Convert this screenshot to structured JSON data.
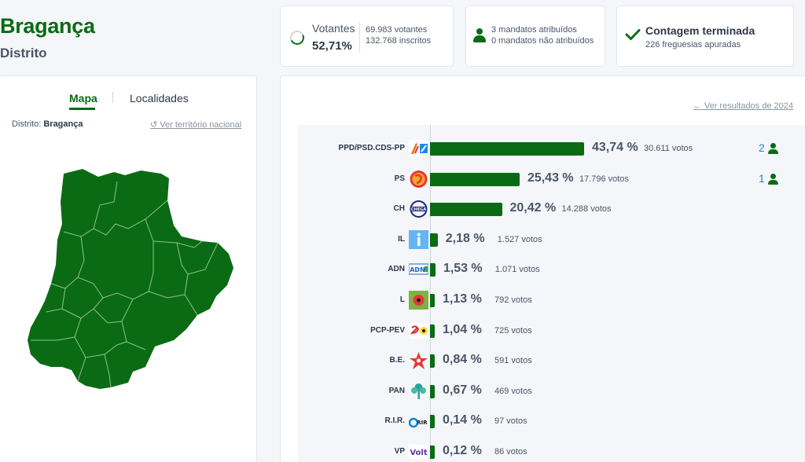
{
  "header": {
    "title": "Bragança",
    "subtitle": "Distrito"
  },
  "votantes": {
    "label": "Votantes",
    "percentage": "52,71%",
    "votantes_text": "69.983 votantes",
    "inscritos_text": "132.768 inscritos"
  },
  "mandatos": {
    "atribuidos_text": "3 mandatos atribuídos",
    "nao_atribuidos_text": "0 mandatos não atribuídos"
  },
  "contagem": {
    "title": "Contagem terminada",
    "subtitle": "226 freguesias apuradas"
  },
  "map_panel": {
    "tabs": [
      "Mapa",
      "Localidades"
    ],
    "active_tab": "Mapa",
    "distrito_label": "Distrito:",
    "distrito_value": "Bragança",
    "ver_nacional": "Ver território nacional",
    "fill_color": "#0a6b14"
  },
  "results_panel": {
    "ver_2024": "Ver resultados de 2024",
    "accent_color": "#0a6b14",
    "seat_color": "#3182ce"
  },
  "chart_data": {
    "type": "bar",
    "orientation": "horizontal",
    "categories": [
      "PPD/PSD.CDS-PP",
      "PS",
      "CH",
      "IL",
      "ADN",
      "L",
      "PCP-PEV",
      "B.E.",
      "PAN",
      "R.I.R.",
      "VP"
    ],
    "values": [
      43.74,
      25.43,
      20.42,
      2.18,
      1.53,
      1.13,
      1.04,
      0.84,
      0.67,
      0.14,
      0.12
    ],
    "pct_labels": [
      "43,74 %",
      "25,43 %",
      "20,42 %",
      "2,18 %",
      "1,53 %",
      "1,13 %",
      "1,04 %",
      "0,84 %",
      "0,67 %",
      "0,14 %",
      "0,12 %"
    ],
    "votos_labels": [
      "30.611 votos",
      "17.796 votos",
      "14.288 votos",
      "1.527 votos",
      "1.071 votos",
      "792 votos",
      "725 votos",
      "591 votos",
      "469 votos",
      "97 votos",
      "86 votos"
    ],
    "mandatos": [
      "2",
      "1",
      "",
      "",
      "",
      "",
      "",
      "",
      "",
      "",
      ""
    ]
  }
}
